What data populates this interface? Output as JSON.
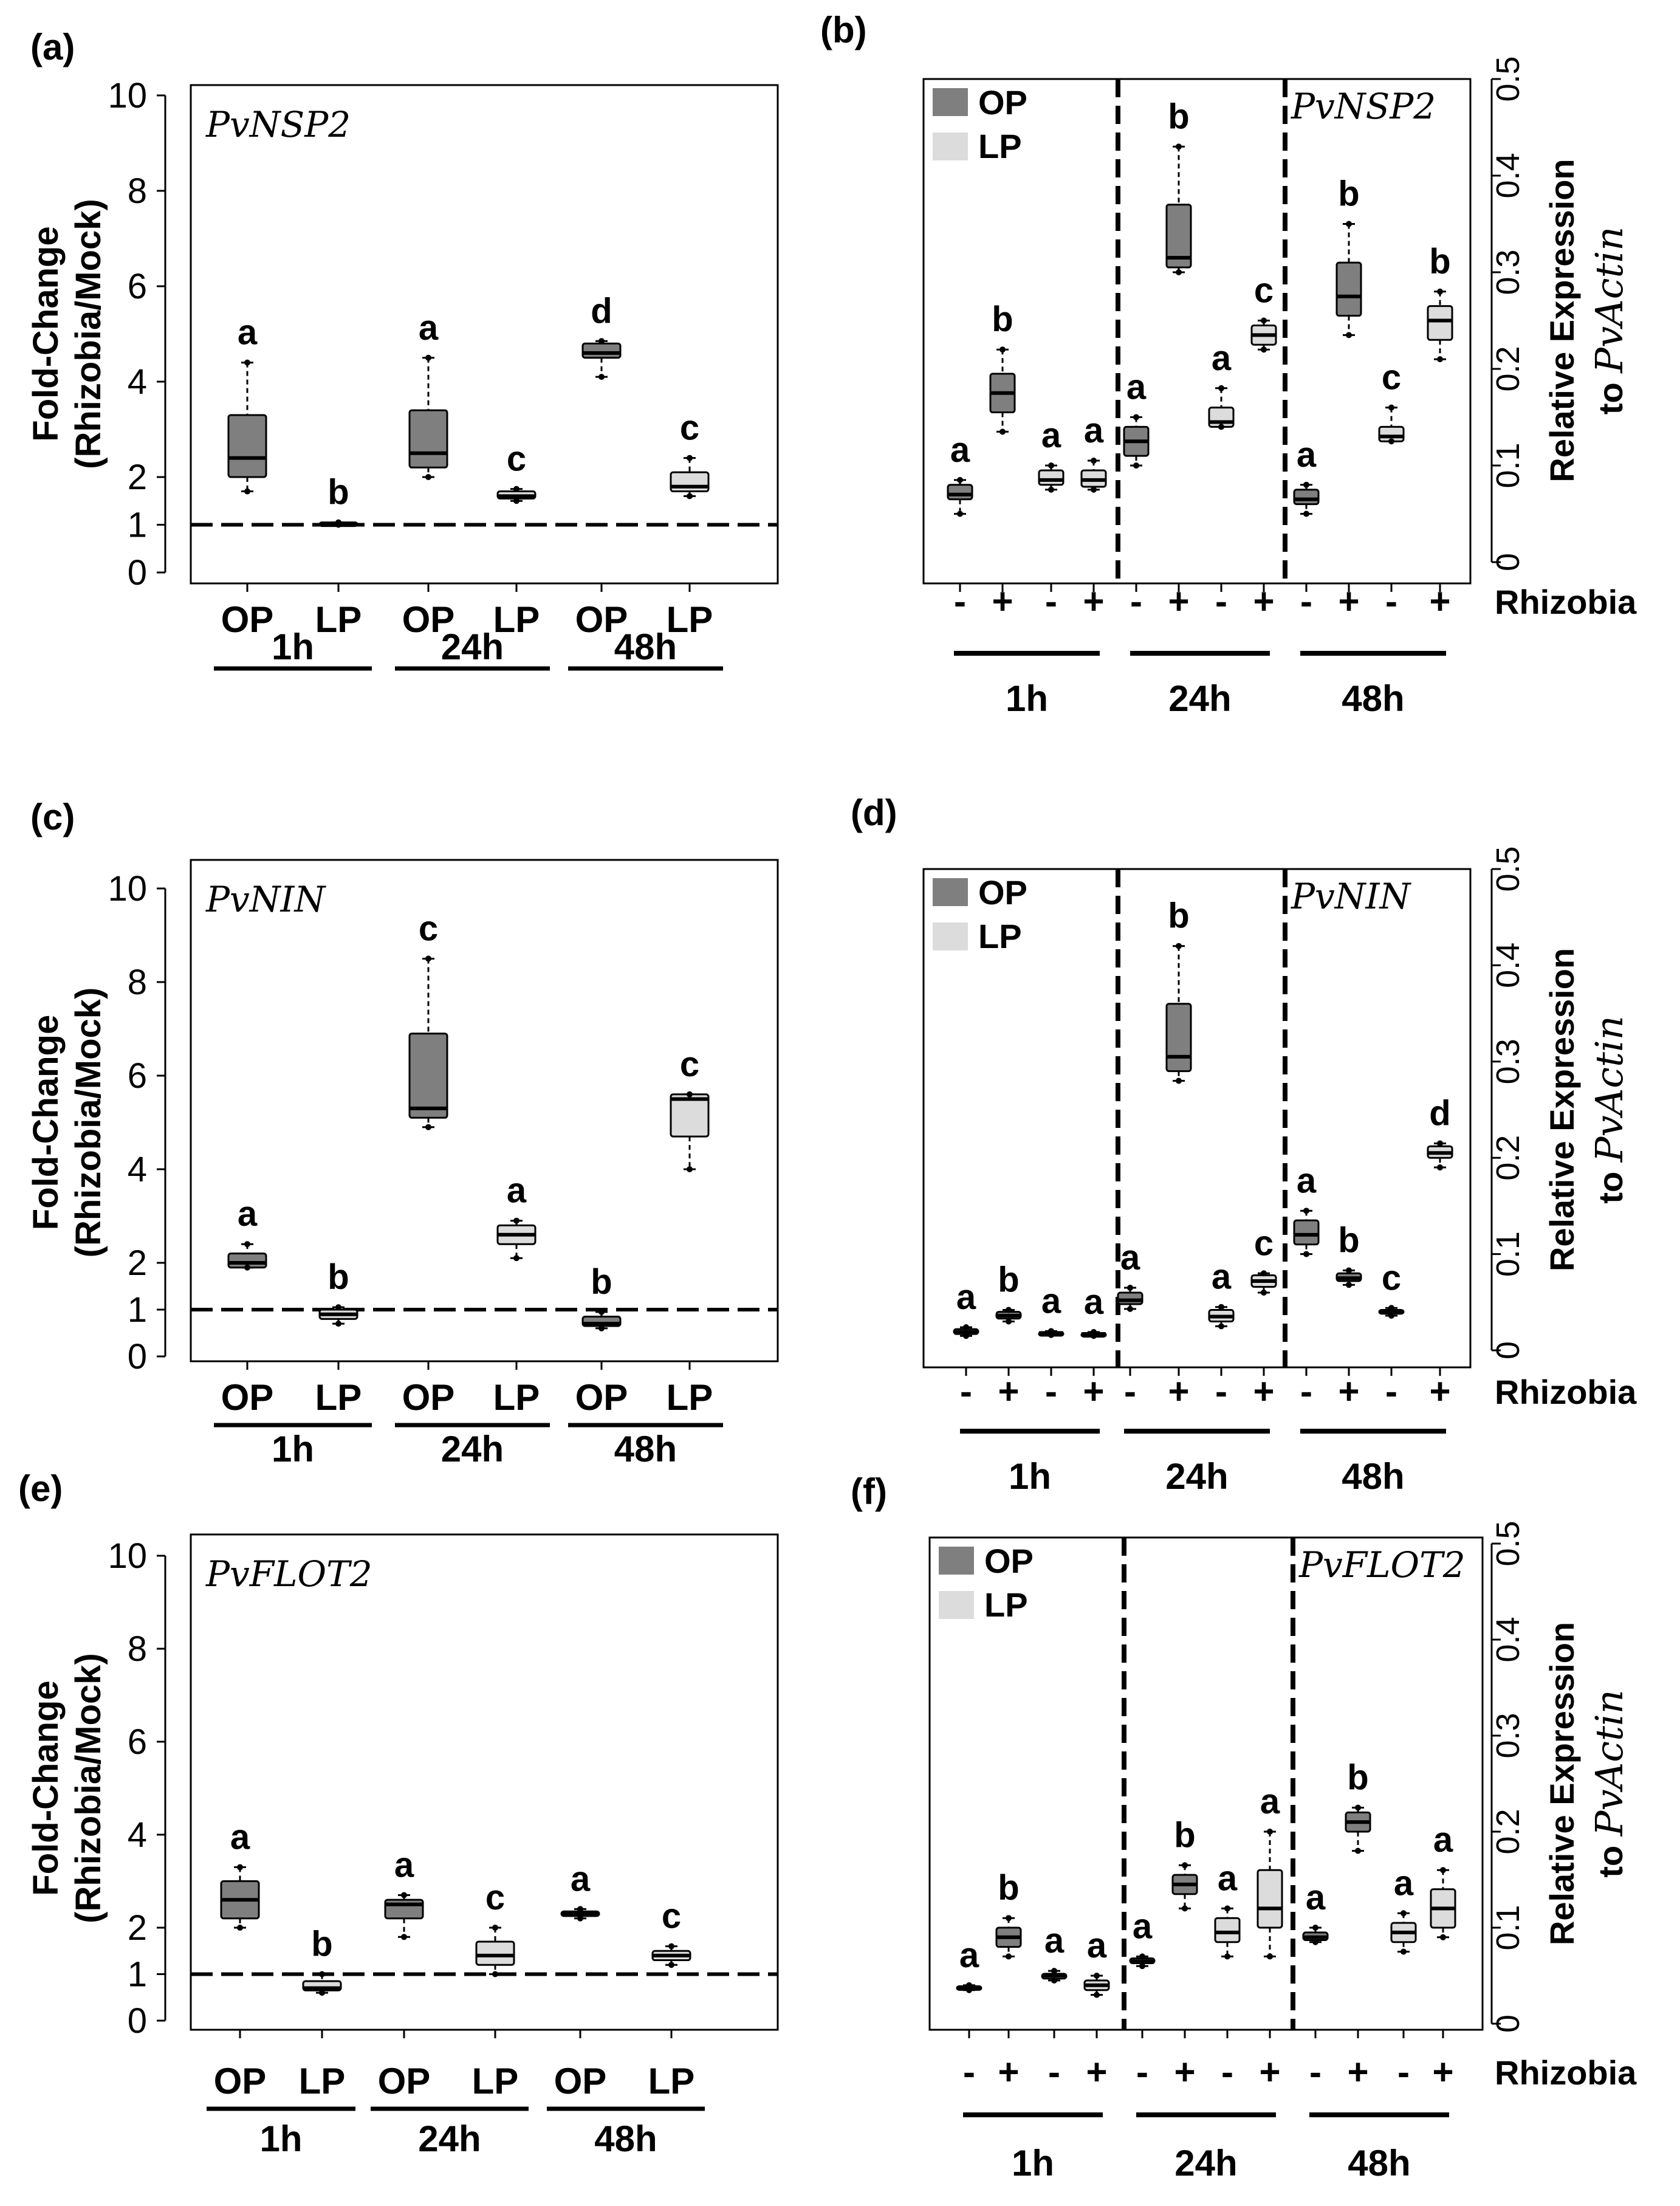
{
  "colors": {
    "op": "#7f7f7f",
    "lp": "#dcdcdc",
    "axis": "#000000"
  },
  "chart_data": [
    {
      "panel": "(a)",
      "type": "box",
      "gene": "PvNSP2",
      "ylabel": [
        "Fold-Change",
        "(Rhizobia/Mock)"
      ],
      "yticks": [
        "10",
        "8",
        "6",
        "4",
        "2",
        "1",
        "0"
      ],
      "ylim": [
        0,
        10
      ],
      "reference_line": 1,
      "categories": [
        "OP",
        "LP",
        "OP",
        "LP",
        "OP",
        "LP"
      ],
      "groups": [
        "1h",
        "24h",
        "48h"
      ],
      "boxes": [
        {
          "label": "OP 1h",
          "fill": "op",
          "whisker_low": 1.7,
          "q1": 2.0,
          "median": 2.4,
          "q3": 3.3,
          "whisker_high": 4.4,
          "letter": "a"
        },
        {
          "label": "LP 1h",
          "fill": "lp",
          "whisker_low": 1.0,
          "q1": 1.0,
          "median": 1.0,
          "q3": 1.05,
          "whisker_high": 1.05,
          "letter": "b"
        },
        {
          "label": "OP 24h",
          "fill": "op",
          "whisker_low": 2.0,
          "q1": 2.2,
          "median": 2.5,
          "q3": 3.4,
          "whisker_high": 4.5,
          "letter": "a"
        },
        {
          "label": "LP 24h",
          "fill": "lp",
          "whisker_low": 1.5,
          "q1": 1.55,
          "median": 1.6,
          "q3": 1.7,
          "whisker_high": 1.75,
          "letter": "c"
        },
        {
          "label": "OP 48h",
          "fill": "op",
          "whisker_low": 4.1,
          "q1": 4.5,
          "median": 4.6,
          "q3": 4.8,
          "whisker_high": 4.85,
          "letter": "d"
        },
        {
          "label": "LP 48h",
          "fill": "lp",
          "whisker_low": 1.6,
          "q1": 1.7,
          "median": 1.8,
          "q3": 2.1,
          "whisker_high": 2.4,
          "letter": "c"
        }
      ]
    },
    {
      "panel": "(b)",
      "type": "box",
      "gene": "PvNSP2",
      "ylabel": [
        "Relative Expression",
        "to "
      ],
      "ylabel_gene": "PvActin",
      "yticks": [
        "0.5",
        "0.4",
        "0.3",
        "0.2",
        "0.1",
        "0"
      ],
      "ylim": [
        0,
        0.5
      ],
      "legend": [
        "OP",
        "LP"
      ],
      "legend_position": "top-left",
      "xticks": [
        "-",
        "+",
        "-",
        "+",
        "-",
        "+",
        "-",
        "+",
        "-",
        "+",
        "-",
        "+"
      ],
      "xlabel": "Rhizobia",
      "groups": [
        "1h",
        "24h",
        "48h"
      ],
      "boxes": [
        {
          "fill": "op",
          "whisker_low": 0.05,
          "q1": 0.065,
          "median": 0.07,
          "q3": 0.08,
          "whisker_high": 0.085,
          "letter": "a"
        },
        {
          "fill": "op",
          "whisker_low": 0.135,
          "q1": 0.155,
          "median": 0.175,
          "q3": 0.195,
          "whisker_high": 0.22,
          "letter": "b"
        },
        {
          "fill": "lp",
          "whisker_low": 0.075,
          "q1": 0.08,
          "median": 0.085,
          "q3": 0.095,
          "whisker_high": 0.1,
          "letter": "a"
        },
        {
          "fill": "lp",
          "whisker_low": 0.075,
          "q1": 0.078,
          "median": 0.085,
          "q3": 0.095,
          "whisker_high": 0.105,
          "letter": "a"
        },
        {
          "fill": "op",
          "whisker_low": 0.1,
          "q1": 0.11,
          "median": 0.125,
          "q3": 0.14,
          "whisker_high": 0.15,
          "letter": "a"
        },
        {
          "fill": "op",
          "whisker_low": 0.3,
          "q1": 0.305,
          "median": 0.315,
          "q3": 0.37,
          "whisker_high": 0.43,
          "letter": "b"
        },
        {
          "fill": "lp",
          "whisker_low": 0.14,
          "q1": 0.14,
          "median": 0.145,
          "q3": 0.16,
          "whisker_high": 0.18,
          "letter": "a"
        },
        {
          "fill": "lp",
          "whisker_low": 0.22,
          "q1": 0.225,
          "median": 0.235,
          "q3": 0.245,
          "whisker_high": 0.25,
          "letter": "c"
        },
        {
          "fill": "op",
          "whisker_low": 0.05,
          "q1": 0.06,
          "median": 0.065,
          "q3": 0.075,
          "whisker_high": 0.08,
          "letter": "a"
        },
        {
          "fill": "op",
          "whisker_low": 0.235,
          "q1": 0.255,
          "median": 0.275,
          "q3": 0.31,
          "whisker_high": 0.35,
          "letter": "b"
        },
        {
          "fill": "lp",
          "whisker_low": 0.125,
          "q1": 0.125,
          "median": 0.13,
          "q3": 0.14,
          "whisker_high": 0.16,
          "letter": "c"
        },
        {
          "fill": "lp",
          "whisker_low": 0.21,
          "q1": 0.23,
          "median": 0.25,
          "q3": 0.265,
          "whisker_high": 0.28,
          "letter": "b"
        }
      ]
    },
    {
      "panel": "(c)",
      "type": "box",
      "gene": "PvNIN",
      "ylabel": [
        "Fold-Change",
        "(Rhizobia/Mock)"
      ],
      "yticks": [
        "10",
        "8",
        "6",
        "4",
        "2",
        "1",
        "0"
      ],
      "ylim": [
        0,
        10
      ],
      "reference_line": 1,
      "categories": [
        "OP",
        "LP",
        "OP",
        "LP",
        "OP",
        "LP"
      ],
      "groups": [
        "1h",
        "24h",
        "48h"
      ],
      "boxes": [
        {
          "label": "OP 1h",
          "fill": "op",
          "whisker_low": 1.9,
          "q1": 1.9,
          "median": 2.0,
          "q3": 2.2,
          "whisker_high": 2.4,
          "letter": "a"
        },
        {
          "label": "LP 1h",
          "fill": "lp",
          "whisker_low": 0.7,
          "q1": 0.8,
          "median": 0.9,
          "q3": 1.0,
          "whisker_high": 1.05,
          "letter": "b"
        },
        {
          "label": "OP 24h",
          "fill": "op",
          "whisker_low": 4.9,
          "q1": 5.1,
          "median": 5.3,
          "q3": 6.9,
          "whisker_high": 8.5,
          "letter": "c"
        },
        {
          "label": "LP 24h",
          "fill": "lp",
          "whisker_low": 2.1,
          "q1": 2.4,
          "median": 2.6,
          "q3": 2.8,
          "whisker_high": 2.9,
          "letter": "a"
        },
        {
          "label": "OP 48h",
          "fill": "op",
          "whisker_low": 0.6,
          "q1": 0.65,
          "median": 0.7,
          "q3": 0.85,
          "whisker_high": 0.95,
          "letter": "b"
        },
        {
          "label": "LP 48h",
          "fill": "lp",
          "whisker_low": 4.0,
          "q1": 4.7,
          "median": 5.5,
          "q3": 5.6,
          "whisker_high": 5.6,
          "letter": "c"
        }
      ]
    },
    {
      "panel": "(d)",
      "type": "box",
      "gene": "PvNIN",
      "ylabel": [
        "Relative Expression",
        "to "
      ],
      "ylabel_gene": "PvActin",
      "yticks": [
        "0.5",
        "0.4",
        "0.3",
        "0.2",
        "0.1",
        "0"
      ],
      "ylim": [
        0,
        0.5
      ],
      "legend": [
        "OP",
        "LP"
      ],
      "legend_position": "top-left",
      "xticks": [
        "-",
        "+",
        "-",
        "+",
        "-",
        "+",
        "-",
        "+",
        "-",
        "+",
        "-",
        "+"
      ],
      "xlabel": "Rhizobia",
      "groups": [
        "1h",
        "24h",
        "48h"
      ],
      "boxes": [
        {
          "fill": "op",
          "whisker_low": 0.015,
          "q1": 0.017,
          "median": 0.019,
          "q3": 0.022,
          "whisker_high": 0.024,
          "letter": "a"
        },
        {
          "fill": "op",
          "whisker_low": 0.03,
          "q1": 0.033,
          "median": 0.036,
          "q3": 0.04,
          "whisker_high": 0.042,
          "letter": "b"
        },
        {
          "fill": "lp",
          "whisker_low": 0.016,
          "q1": 0.017,
          "median": 0.018,
          "q3": 0.019,
          "whisker_high": 0.02,
          "letter": "a"
        },
        {
          "fill": "lp",
          "whisker_low": 0.015,
          "q1": 0.016,
          "median": 0.017,
          "q3": 0.018,
          "whisker_high": 0.019,
          "letter": "a"
        },
        {
          "fill": "op",
          "whisker_low": 0.043,
          "q1": 0.048,
          "median": 0.052,
          "q3": 0.06,
          "whisker_high": 0.065,
          "letter": "a"
        },
        {
          "fill": "op",
          "whisker_low": 0.28,
          "q1": 0.29,
          "median": 0.305,
          "q3": 0.36,
          "whisker_high": 0.42,
          "letter": "b"
        },
        {
          "fill": "lp",
          "whisker_low": 0.025,
          "q1": 0.03,
          "median": 0.035,
          "q3": 0.042,
          "whisker_high": 0.045,
          "letter": "a"
        },
        {
          "fill": "lp",
          "whisker_low": 0.06,
          "q1": 0.066,
          "median": 0.072,
          "q3": 0.078,
          "whisker_high": 0.08,
          "letter": "c"
        },
        {
          "fill": "op",
          "whisker_low": 0.1,
          "q1": 0.11,
          "median": 0.12,
          "q3": 0.135,
          "whisker_high": 0.145,
          "letter": "a"
        },
        {
          "fill": "op",
          "whisker_low": 0.068,
          "q1": 0.072,
          "median": 0.075,
          "q3": 0.08,
          "whisker_high": 0.083,
          "letter": "b"
        },
        {
          "fill": "lp",
          "whisker_low": 0.036,
          "q1": 0.038,
          "median": 0.04,
          "q3": 0.042,
          "whisker_high": 0.044,
          "letter": "c"
        },
        {
          "fill": "lp",
          "whisker_low": 0.19,
          "q1": 0.2,
          "median": 0.205,
          "q3": 0.212,
          "whisker_high": 0.215,
          "letter": "d"
        }
      ]
    },
    {
      "panel": "(e)",
      "type": "box",
      "gene": "PvFLOT2",
      "ylabel": [
        "Fold-Change",
        "(Rhizobia/Mock)"
      ],
      "yticks": [
        "10",
        "8",
        "6",
        "4",
        "2",
        "1",
        "0"
      ],
      "ylim": [
        0,
        10
      ],
      "reference_line": 1,
      "categories": [
        "OP",
        "LP",
        "OP",
        "LP",
        "OP",
        "LP"
      ],
      "groups": [
        "1h",
        "24h",
        "48h"
      ],
      "boxes": [
        {
          "label": "OP 1h",
          "fill": "op",
          "whisker_low": 2.0,
          "q1": 2.2,
          "median": 2.6,
          "q3": 3.0,
          "whisker_high": 3.3,
          "letter": "a"
        },
        {
          "label": "LP 1h",
          "fill": "lp",
          "whisker_low": 0.6,
          "q1": 0.65,
          "median": 0.7,
          "q3": 0.85,
          "whisker_high": 1.0,
          "letter": "b"
        },
        {
          "label": "OP 24h",
          "fill": "op",
          "whisker_low": 1.8,
          "q1": 2.2,
          "median": 2.5,
          "q3": 2.6,
          "whisker_high": 2.7,
          "letter": "a"
        },
        {
          "label": "LP 24h",
          "fill": "lp",
          "whisker_low": 1.0,
          "q1": 1.2,
          "median": 1.4,
          "q3": 1.7,
          "whisker_high": 2.0,
          "letter": "c"
        },
        {
          "label": "OP 48h",
          "fill": "op",
          "whisker_low": 2.2,
          "q1": 2.25,
          "median": 2.3,
          "q3": 2.35,
          "whisker_high": 2.4,
          "letter": "a"
        },
        {
          "label": "LP 48h",
          "fill": "lp",
          "whisker_low": 1.2,
          "q1": 1.3,
          "median": 1.4,
          "q3": 1.5,
          "whisker_high": 1.6,
          "letter": "c"
        }
      ]
    },
    {
      "panel": "(f)",
      "type": "box",
      "gene": "PvFLOT2",
      "ylabel": [
        "Relative Expression",
        "to "
      ],
      "ylabel_gene": "PvActin",
      "yticks": [
        "0.5",
        "0.4",
        "0.3",
        "0.2",
        "0.1",
        "0"
      ],
      "ylim": [
        0,
        0.5
      ],
      "legend": [
        "OP",
        "LP"
      ],
      "legend_position": "top-left",
      "xticks": [
        "-",
        "+",
        "-",
        "+",
        "-",
        "+",
        "-",
        "+",
        "-",
        "+",
        "-",
        "+"
      ],
      "xlabel": "Rhizobia",
      "groups": [
        "1h",
        "24h",
        "48h"
      ],
      "boxes": [
        {
          "fill": "op",
          "whisker_low": 0.035,
          "q1": 0.036,
          "median": 0.037,
          "q3": 0.039,
          "whisker_high": 0.04,
          "letter": "a"
        },
        {
          "fill": "op",
          "whisker_low": 0.07,
          "q1": 0.08,
          "median": 0.09,
          "q3": 0.1,
          "whisker_high": 0.11,
          "letter": "b"
        },
        {
          "fill": "lp",
          "whisker_low": 0.045,
          "q1": 0.047,
          "median": 0.05,
          "q3": 0.052,
          "whisker_high": 0.055,
          "letter": "a"
        },
        {
          "fill": "lp",
          "whisker_low": 0.03,
          "q1": 0.035,
          "median": 0.04,
          "q3": 0.045,
          "whisker_high": 0.05,
          "letter": "a"
        },
        {
          "fill": "op",
          "whisker_low": 0.06,
          "q1": 0.063,
          "median": 0.065,
          "q3": 0.068,
          "whisker_high": 0.07,
          "letter": "a"
        },
        {
          "fill": "op",
          "whisker_low": 0.12,
          "q1": 0.135,
          "median": 0.145,
          "q3": 0.155,
          "whisker_high": 0.165,
          "letter": "b"
        },
        {
          "fill": "lp",
          "whisker_low": 0.07,
          "q1": 0.085,
          "median": 0.095,
          "q3": 0.11,
          "whisker_high": 0.12,
          "letter": "a"
        },
        {
          "fill": "lp",
          "whisker_low": 0.07,
          "q1": 0.1,
          "median": 0.12,
          "q3": 0.16,
          "whisker_high": 0.2,
          "letter": "a"
        },
        {
          "fill": "op",
          "whisker_low": 0.085,
          "q1": 0.087,
          "median": 0.09,
          "q3": 0.095,
          "whisker_high": 0.1,
          "letter": "a"
        },
        {
          "fill": "op",
          "whisker_low": 0.18,
          "q1": 0.2,
          "median": 0.21,
          "q3": 0.22,
          "whisker_high": 0.225,
          "letter": "b"
        },
        {
          "fill": "lp",
          "whisker_low": 0.075,
          "q1": 0.085,
          "median": 0.095,
          "q3": 0.105,
          "whisker_high": 0.115,
          "letter": "a"
        },
        {
          "fill": "lp",
          "whisker_low": 0.09,
          "q1": 0.1,
          "median": 0.12,
          "q3": 0.14,
          "whisker_high": 0.16,
          "letter": "a"
        }
      ]
    }
  ]
}
